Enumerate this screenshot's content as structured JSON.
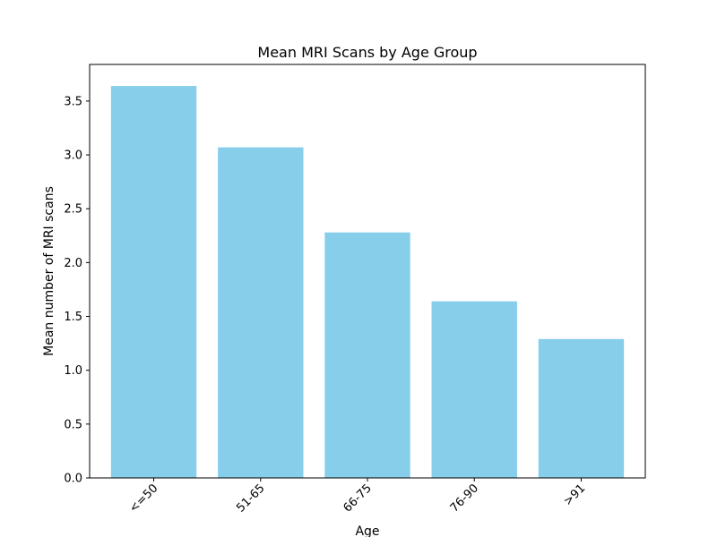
{
  "chart_data": {
    "type": "bar",
    "title": "Mean MRI Scans by Age Group",
    "xlabel": "Age",
    "ylabel": "Mean number of MRI scans",
    "categories": [
      "<=50",
      "51-65",
      "66-75",
      "76-90",
      ">91"
    ],
    "values": [
      3.64,
      3.07,
      2.28,
      1.64,
      1.29
    ],
    "ylim": [
      0,
      3.84
    ],
    "yticks": [
      "0.0",
      "0.5",
      "1.0",
      "1.5",
      "2.0",
      "2.5",
      "3.0",
      "3.5"
    ],
    "bar_color": "#87CEEB",
    "grid": false,
    "xtick_rotation_deg": 45
  }
}
